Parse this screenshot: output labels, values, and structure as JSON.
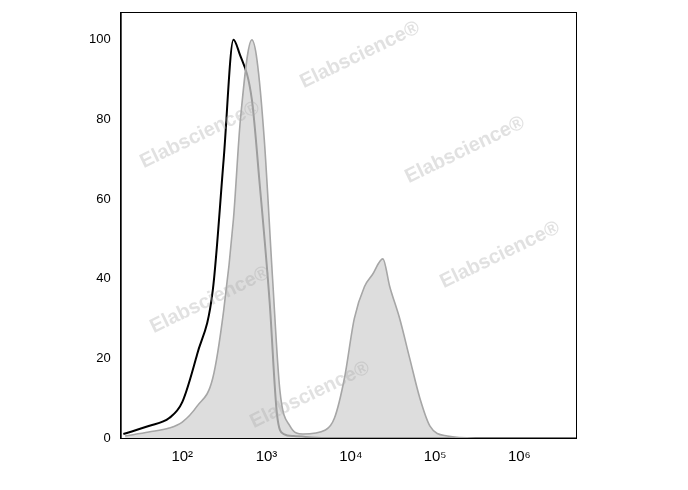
{
  "chart_data": {
    "type": "line",
    "log": "x",
    "grid": false,
    "xlim": [
      18.6,
      4700000
    ],
    "ylim": [
      0,
      107
    ],
    "xticks": [
      {
        "value": 100,
        "label": "10²"
      },
      {
        "value": 1000,
        "label": "10³"
      },
      {
        "value": 10000,
        "label": "10⁴"
      },
      {
        "value": 100000,
        "label": "10⁵"
      },
      {
        "value": 1000000,
        "label": "10⁶"
      }
    ],
    "yticks": [
      0,
      20,
      40,
      60,
      80,
      100
    ],
    "annotations": [
      "Elabscience®"
    ],
    "series": [
      {
        "color": "#a6a6a6",
        "fill": true,
        "x": [
          21,
          40,
          70,
          100,
          150,
          230,
          310,
          405,
          490,
          670,
          770,
          940,
          1180,
          1440,
          1900,
          2700,
          5000,
          6400,
          8400,
          11000,
          14500,
          18000,
          24000,
          29000,
          38000,
          50000,
          66000,
          87000,
          140000,
          300000,
          1000000,
          4700000
        ],
        "values": [
          0.5,
          1.5,
          2.5,
          4,
          8,
          15,
          32,
          55,
          80,
          100,
          95,
          75,
          40,
          12,
          3,
          1,
          2,
          5,
          15,
          30,
          38,
          41,
          45,
          38,
          30,
          20,
          10,
          3,
          0.5,
          0,
          0,
          0
        ]
      },
      {
        "color": "#000000",
        "fill": false,
        "x": [
          20,
          40,
          70,
          100,
          150,
          230,
          310,
          405,
          470,
          670,
          820,
          1090,
          1330,
          1600,
          2100,
          5000,
          100000,
          4700000
        ],
        "values": [
          1,
          3,
          5,
          9,
          21,
          37,
          70,
          100,
          97,
          85,
          65,
          34,
          6,
          1,
          0.5,
          0,
          0,
          0
        ]
      }
    ]
  }
}
